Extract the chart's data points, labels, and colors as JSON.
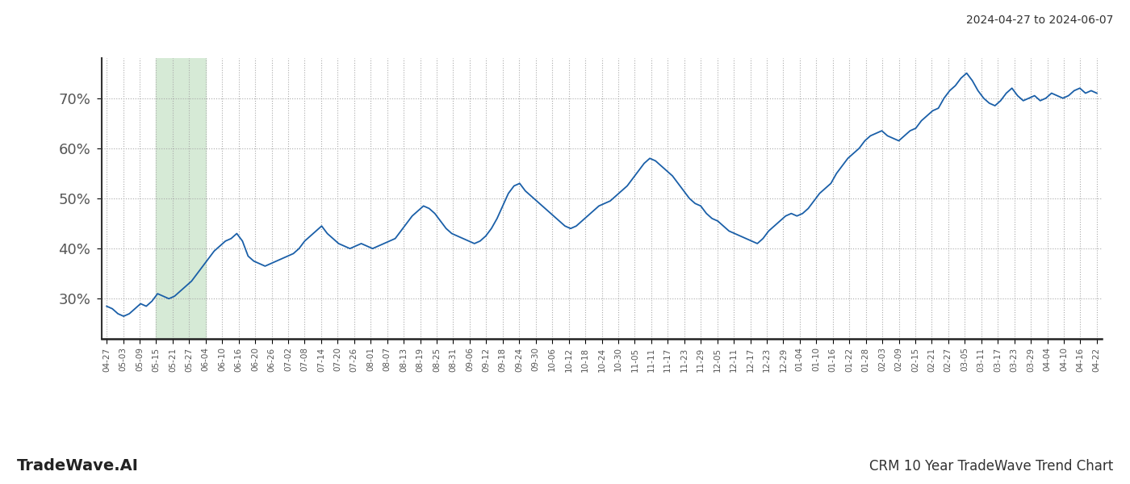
{
  "title_top_right": "2024-04-27 to 2024-06-07",
  "title_bottom_left": "TradeWave.AI",
  "title_bottom_right": "CRM 10 Year TradeWave Trend Chart",
  "background_color": "#ffffff",
  "line_color": "#1a5fa8",
  "line_width": 1.3,
  "shaded_region_color": "#d6ead6",
  "shaded_x_start_label": "05-15",
  "shaded_x_end_label": "06-04",
  "ylim": [
    22,
    78
  ],
  "yticks": [
    30,
    40,
    50,
    60,
    70
  ],
  "grid_color": "#aaaaaa",
  "x_labels": [
    "04-27",
    "05-03",
    "05-09",
    "05-15",
    "05-21",
    "05-27",
    "06-04",
    "06-10",
    "06-16",
    "06-20",
    "06-26",
    "07-02",
    "07-08",
    "07-14",
    "07-20",
    "07-26",
    "08-01",
    "08-07",
    "08-13",
    "08-19",
    "08-25",
    "08-31",
    "09-06",
    "09-12",
    "09-18",
    "09-24",
    "09-30",
    "10-06",
    "10-12",
    "10-18",
    "10-24",
    "10-30",
    "11-05",
    "11-11",
    "11-17",
    "11-23",
    "11-29",
    "12-05",
    "12-11",
    "12-17",
    "12-23",
    "12-29",
    "01-04",
    "01-10",
    "01-16",
    "01-22",
    "01-28",
    "02-03",
    "02-09",
    "02-15",
    "02-21",
    "02-27",
    "03-05",
    "03-11",
    "03-17",
    "03-23",
    "03-29",
    "04-04",
    "04-10",
    "04-16",
    "04-22"
  ],
  "y_values": [
    28.5,
    28.0,
    27.0,
    26.5,
    27.0,
    28.0,
    29.0,
    28.5,
    29.5,
    31.0,
    30.5,
    30.0,
    30.5,
    31.5,
    32.5,
    33.5,
    35.0,
    36.5,
    38.0,
    39.5,
    40.5,
    41.5,
    42.0,
    43.0,
    41.5,
    38.5,
    37.5,
    37.0,
    36.5,
    37.0,
    37.5,
    38.0,
    38.5,
    39.0,
    40.0,
    41.5,
    42.5,
    43.5,
    44.5,
    43.0,
    42.0,
    41.0,
    40.5,
    40.0,
    40.5,
    41.0,
    40.5,
    40.0,
    40.5,
    41.0,
    41.5,
    42.0,
    43.5,
    45.0,
    46.5,
    47.5,
    48.5,
    48.0,
    47.0,
    45.5,
    44.0,
    43.0,
    42.5,
    42.0,
    41.5,
    41.0,
    41.5,
    42.5,
    44.0,
    46.0,
    48.5,
    51.0,
    52.5,
    53.0,
    51.5,
    50.5,
    49.5,
    48.5,
    47.5,
    46.5,
    45.5,
    44.5,
    44.0,
    44.5,
    45.5,
    46.5,
    47.5,
    48.5,
    49.0,
    49.5,
    50.5,
    51.5,
    52.5,
    54.0,
    55.5,
    57.0,
    58.0,
    57.5,
    56.5,
    55.5,
    54.5,
    53.0,
    51.5,
    50.0,
    49.0,
    48.5,
    47.0,
    46.0,
    45.5,
    44.5,
    43.5,
    43.0,
    42.5,
    42.0,
    41.5,
    41.0,
    42.0,
    43.5,
    44.5,
    45.5,
    46.5,
    47.0,
    46.5,
    47.0,
    48.0,
    49.5,
    51.0,
    52.0,
    53.0,
    55.0,
    56.5,
    58.0,
    59.0,
    60.0,
    61.5,
    62.5,
    63.0,
    63.5,
    62.5,
    62.0,
    61.5,
    62.5,
    63.5,
    64.0,
    65.5,
    66.5,
    67.5,
    68.0,
    70.0,
    71.5,
    72.5,
    74.0,
    75.0,
    73.5,
    71.5,
    70.0,
    69.0,
    68.5,
    69.5,
    71.0,
    72.0,
    70.5,
    69.5,
    70.0,
    70.5,
    69.5,
    70.0,
    71.0,
    70.5,
    70.0,
    70.5,
    71.5,
    72.0,
    71.0,
    71.5,
    71.0
  ]
}
